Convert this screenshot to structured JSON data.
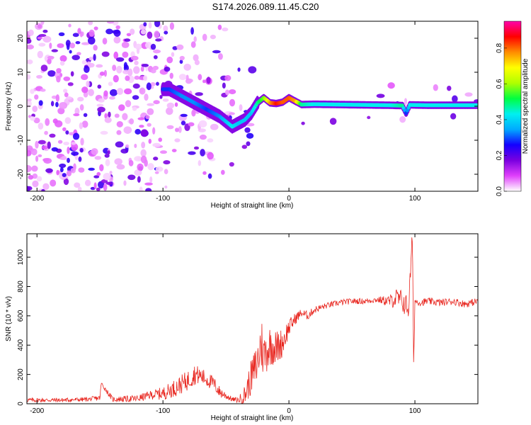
{
  "figure": {
    "title": "S174.2026.089.11.45.C20"
  },
  "chart_data": [
    {
      "type": "heatmap",
      "name": "spectrogram",
      "xlabel": "Height of straight line (km)",
      "ylabel": "Frequency (Hz)",
      "xlim": [
        -208,
        150
      ],
      "ylim": [
        -25,
        25
      ],
      "xticks": [
        -200,
        -100,
        0,
        100
      ],
      "yticks": [
        -20,
        -10,
        0,
        10,
        20
      ],
      "colorbar": {
        "label": "Normalized spectral amplitude",
        "range": [
          0.0,
          0.95
        ],
        "ticks": [
          "0.0",
          "0.2",
          "0.4",
          "0.6",
          "0.8"
        ],
        "tick_values": [
          0.0,
          0.2,
          0.4,
          0.6,
          0.8
        ],
        "colors": [
          "#ffffff",
          "#e040fb",
          "#7a00e0",
          "#1400ff",
          "#00aaff",
          "#00f0f0",
          "#00ff40",
          "#b0ff00",
          "#ffff00",
          "#ff8c00",
          "#ff0000",
          "#ff00aa"
        ]
      },
      "ridge": {
        "description_free": true,
        "x": [
          -95,
          -85,
          -75,
          -65,
          -55,
          -45,
          -40,
          -35,
          -30,
          -25,
          -20,
          -15,
          -10,
          -5,
          0,
          5,
          10,
          20,
          40,
          60,
          80,
          90,
          93,
          96,
          110,
          130,
          150
        ],
        "y": [
          5,
          3,
          1,
          -1,
          -3,
          -6,
          -5,
          -4,
          -2,
          1,
          2.5,
          1,
          0.8,
          1.2,
          2.5,
          1.5,
          0.5,
          0.6,
          0.5,
          0.4,
          0.3,
          0.2,
          -2,
          0.4,
          0.3,
          0.3,
          0.3
        ],
        "amplitude": [
          0.3,
          0.35,
          0.35,
          0.3,
          0.35,
          0.45,
          0.4,
          0.4,
          0.4,
          0.5,
          0.6,
          0.8,
          0.9,
          0.85,
          0.85,
          0.8,
          0.5,
          0.45,
          0.45,
          0.45,
          0.45,
          0.5,
          0.3,
          0.45,
          0.45,
          0.45,
          0.45
        ]
      }
    },
    {
      "type": "line",
      "name": "snr",
      "xlabel": "Height of straight line (km)",
      "ylabel": "SNR (10 * v/v)",
      "xlim": [
        -208,
        150
      ],
      "ylim": [
        0,
        1160
      ],
      "xticks": [
        -200,
        -100,
        0,
        100
      ],
      "yticks": [
        0,
        200,
        400,
        600,
        800,
        1000
      ],
      "series": [
        {
          "name": "SNR",
          "color": "#e8251e",
          "x": [
            -208,
            -180,
            -160,
            -150,
            -149,
            -140,
            -120,
            -110,
            -100,
            -90,
            -80,
            -75,
            -70,
            -60,
            -55,
            -45,
            -40,
            -35,
            -30,
            -25,
            -22,
            -20,
            -15,
            -10,
            -5,
            0,
            5,
            10,
            15,
            20,
            30,
            40,
            50,
            60,
            70,
            80,
            85,
            90,
            95,
            98,
            99,
            100,
            105,
            110,
            120,
            130,
            140,
            150
          ],
          "y": [
            25,
            25,
            30,
            40,
            140,
            30,
            35,
            60,
            70,
            110,
            160,
            200,
            190,
            140,
            80,
            30,
            25,
            60,
            180,
            280,
            420,
            330,
            400,
            380,
            420,
            520,
            580,
            620,
            600,
            640,
            670,
            690,
            700,
            700,
            710,
            700,
            720,
            700,
            650,
            1150,
            270,
            700,
            690,
            700,
            690,
            700,
            680,
            700
          ],
          "noise": [
            15,
            15,
            15,
            18,
            15,
            18,
            25,
            30,
            45,
            60,
            70,
            70,
            60,
            50,
            40,
            15,
            20,
            70,
            120,
            150,
            200,
            160,
            140,
            120,
            100,
            60,
            40,
            30,
            30,
            25,
            20,
            20,
            20,
            20,
            20,
            40,
            70,
            80,
            80,
            60,
            60,
            25,
            25,
            25,
            25,
            25,
            25,
            25
          ]
        }
      ]
    }
  ]
}
